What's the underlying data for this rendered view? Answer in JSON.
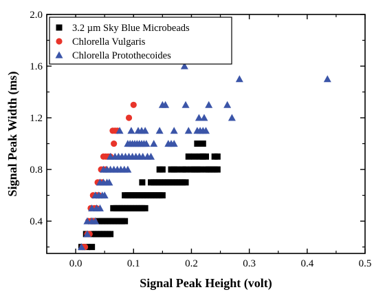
{
  "chart_data": {
    "type": "scatter",
    "title": "",
    "xlabel": "Signal Peak Height (volt)",
    "ylabel": "Signal Peak Width (ms)",
    "xlim": [
      -0.05,
      0.5
    ],
    "ylim": [
      0.15,
      2.0
    ],
    "xticks": [
      "0.0",
      "0.1",
      "0.2",
      "0.3",
      "0.4",
      "0.5"
    ],
    "yticks": [
      "0.4",
      "0.8",
      "1.2",
      "1.6",
      "2.0"
    ],
    "grid": false,
    "legend_position": "top-left",
    "series": [
      {
        "name": "3.2 µm Sky Blue Microbeads",
        "marker": "square",
        "color": "#000000",
        "points": [
          [
            0.01,
            0.2
          ],
          [
            0.02,
            0.2
          ],
          [
            0.028,
            0.2
          ],
          [
            0.018,
            0.3
          ],
          [
            0.03,
            0.3
          ],
          [
            0.035,
            0.3
          ],
          [
            0.04,
            0.3
          ],
          [
            0.045,
            0.3
          ],
          [
            0.05,
            0.3
          ],
          [
            0.055,
            0.3
          ],
          [
            0.06,
            0.3
          ],
          [
            0.03,
            0.4
          ],
          [
            0.04,
            0.4
          ],
          [
            0.045,
            0.4
          ],
          [
            0.05,
            0.4
          ],
          [
            0.055,
            0.4
          ],
          [
            0.06,
            0.4
          ],
          [
            0.065,
            0.4
          ],
          [
            0.07,
            0.4
          ],
          [
            0.075,
            0.4
          ],
          [
            0.08,
            0.4
          ],
          [
            0.085,
            0.4
          ],
          [
            0.065,
            0.5
          ],
          [
            0.07,
            0.5
          ],
          [
            0.075,
            0.5
          ],
          [
            0.08,
            0.5
          ],
          [
            0.085,
            0.5
          ],
          [
            0.09,
            0.5
          ],
          [
            0.095,
            0.5
          ],
          [
            0.1,
            0.5
          ],
          [
            0.105,
            0.5
          ],
          [
            0.11,
            0.5
          ],
          [
            0.115,
            0.5
          ],
          [
            0.12,
            0.5
          ],
          [
            0.085,
            0.6
          ],
          [
            0.09,
            0.6
          ],
          [
            0.095,
            0.6
          ],
          [
            0.1,
            0.6
          ],
          [
            0.105,
            0.6
          ],
          [
            0.11,
            0.6
          ],
          [
            0.115,
            0.6
          ],
          [
            0.12,
            0.6
          ],
          [
            0.125,
            0.6
          ],
          [
            0.13,
            0.6
          ],
          [
            0.135,
            0.6
          ],
          [
            0.14,
            0.6
          ],
          [
            0.145,
            0.6
          ],
          [
            0.15,
            0.6
          ],
          [
            0.115,
            0.7
          ],
          [
            0.13,
            0.7
          ],
          [
            0.135,
            0.7
          ],
          [
            0.14,
            0.7
          ],
          [
            0.145,
            0.7
          ],
          [
            0.15,
            0.7
          ],
          [
            0.155,
            0.7
          ],
          [
            0.16,
            0.7
          ],
          [
            0.165,
            0.7
          ],
          [
            0.17,
            0.7
          ],
          [
            0.175,
            0.7
          ],
          [
            0.18,
            0.7
          ],
          [
            0.185,
            0.7
          ],
          [
            0.19,
            0.7
          ],
          [
            0.145,
            0.8
          ],
          [
            0.15,
            0.8
          ],
          [
            0.165,
            0.8
          ],
          [
            0.17,
            0.8
          ],
          [
            0.175,
            0.8
          ],
          [
            0.185,
            0.8
          ],
          [
            0.19,
            0.8
          ],
          [
            0.2,
            0.8
          ],
          [
            0.205,
            0.8
          ],
          [
            0.21,
            0.8
          ],
          [
            0.215,
            0.8
          ],
          [
            0.225,
            0.8
          ],
          [
            0.23,
            0.8
          ],
          [
            0.235,
            0.8
          ],
          [
            0.24,
            0.8
          ],
          [
            0.245,
            0.8
          ],
          [
            0.195,
            0.9
          ],
          [
            0.205,
            0.9
          ],
          [
            0.215,
            0.9
          ],
          [
            0.22,
            0.9
          ],
          [
            0.225,
            0.9
          ],
          [
            0.24,
            0.9
          ],
          [
            0.245,
            0.9
          ],
          [
            0.21,
            1.0
          ],
          [
            0.22,
            1.0
          ]
        ]
      },
      {
        "name": "Chlorella Vulgaris",
        "marker": "circle",
        "color": "#e8342a",
        "points": [
          [
            0.012,
            0.2
          ],
          [
            0.016,
            0.2
          ],
          [
            0.02,
            0.3
          ],
          [
            0.024,
            0.3
          ],
          [
            0.022,
            0.4
          ],
          [
            0.028,
            0.4
          ],
          [
            0.032,
            0.4
          ],
          [
            0.026,
            0.5
          ],
          [
            0.032,
            0.5
          ],
          [
            0.036,
            0.5
          ],
          [
            0.03,
            0.6
          ],
          [
            0.036,
            0.6
          ],
          [
            0.04,
            0.6
          ],
          [
            0.038,
            0.7
          ],
          [
            0.042,
            0.7
          ],
          [
            0.046,
            0.7
          ],
          [
            0.044,
            0.8
          ],
          [
            0.048,
            0.8
          ],
          [
            0.052,
            0.8
          ],
          [
            0.048,
            0.9
          ],
          [
            0.052,
            0.9
          ],
          [
            0.056,
            0.9
          ],
          [
            0.06,
            0.9
          ],
          [
            0.066,
            1.0
          ],
          [
            0.064,
            1.1
          ],
          [
            0.068,
            1.1
          ],
          [
            0.072,
            1.1
          ],
          [
            0.092,
            1.2
          ],
          [
            0.1,
            1.3
          ]
        ]
      },
      {
        "name": "Chlorella Protothecoides",
        "marker": "triangle",
        "color": "#3b55a8",
        "points": [
          [
            0.01,
            0.2
          ],
          [
            0.02,
            0.3
          ],
          [
            0.02,
            0.4
          ],
          [
            0.028,
            0.4
          ],
          [
            0.034,
            0.4
          ],
          [
            0.028,
            0.5
          ],
          [
            0.036,
            0.5
          ],
          [
            0.042,
            0.5
          ],
          [
            0.034,
            0.6
          ],
          [
            0.04,
            0.6
          ],
          [
            0.046,
            0.6
          ],
          [
            0.05,
            0.6
          ],
          [
            0.042,
            0.7
          ],
          [
            0.048,
            0.7
          ],
          [
            0.054,
            0.7
          ],
          [
            0.058,
            0.7
          ],
          [
            0.048,
            0.8
          ],
          [
            0.054,
            0.8
          ],
          [
            0.06,
            0.8
          ],
          [
            0.066,
            0.8
          ],
          [
            0.072,
            0.8
          ],
          [
            0.078,
            0.8
          ],
          [
            0.084,
            0.8
          ],
          [
            0.09,
            0.8
          ],
          [
            0.06,
            0.9
          ],
          [
            0.068,
            0.9
          ],
          [
            0.074,
            0.9
          ],
          [
            0.08,
            0.9
          ],
          [
            0.086,
            0.9
          ],
          [
            0.092,
            0.9
          ],
          [
            0.098,
            0.9
          ],
          [
            0.104,
            0.9
          ],
          [
            0.11,
            0.9
          ],
          [
            0.116,
            0.9
          ],
          [
            0.124,
            0.9
          ],
          [
            0.13,
            0.9
          ],
          [
            0.09,
            1.0
          ],
          [
            0.094,
            1.0
          ],
          [
            0.098,
            1.0
          ],
          [
            0.102,
            1.0
          ],
          [
            0.106,
            1.0
          ],
          [
            0.11,
            1.0
          ],
          [
            0.114,
            1.0
          ],
          [
            0.118,
            1.0
          ],
          [
            0.122,
            1.0
          ],
          [
            0.135,
            1.0
          ],
          [
            0.16,
            1.0
          ],
          [
            0.165,
            1.0
          ],
          [
            0.17,
            1.0
          ],
          [
            0.076,
            1.1
          ],
          [
            0.096,
            1.1
          ],
          [
            0.108,
            1.1
          ],
          [
            0.114,
            1.1
          ],
          [
            0.12,
            1.1
          ],
          [
            0.145,
            1.1
          ],
          [
            0.17,
            1.1
          ],
          [
            0.195,
            1.1
          ],
          [
            0.21,
            1.1
          ],
          [
            0.215,
            1.1
          ],
          [
            0.22,
            1.1
          ],
          [
            0.225,
            1.1
          ],
          [
            0.213,
            1.2
          ],
          [
            0.222,
            1.2
          ],
          [
            0.27,
            1.2
          ],
          [
            0.15,
            1.3
          ],
          [
            0.155,
            1.3
          ],
          [
            0.19,
            1.3
          ],
          [
            0.23,
            1.3
          ],
          [
            0.262,
            1.3
          ],
          [
            0.283,
            1.5
          ],
          [
            0.435,
            1.5
          ],
          [
            0.188,
            1.6
          ]
        ]
      }
    ]
  }
}
